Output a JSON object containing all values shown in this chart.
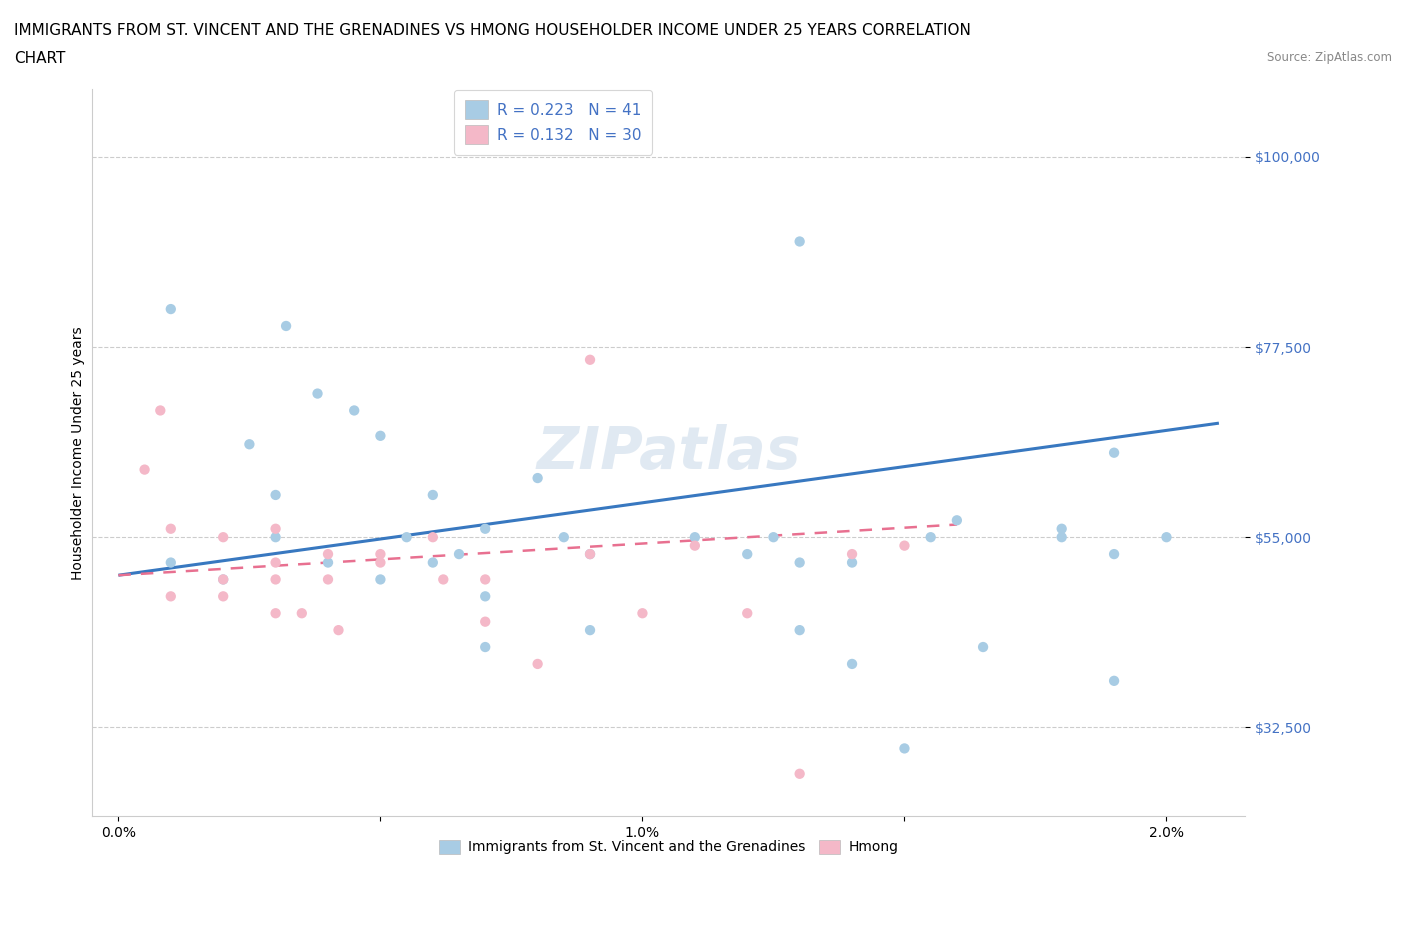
{
  "title_line1": "IMMIGRANTS FROM ST. VINCENT AND THE GRENADINES VS HMONG HOUSEHOLDER INCOME UNDER 25 YEARS CORRELATION",
  "title_line2": "CHART",
  "source": "Source: ZipAtlas.com",
  "ylabel": "Householder Income Under 25 years",
  "legend_label1": "Immigrants from St. Vincent and the Grenadines",
  "legend_label2": "Hmong",
  "R1": 0.223,
  "N1": 41,
  "R2": 0.132,
  "N2": 30,
  "color1": "#a8cce4",
  "color2": "#f4b8c8",
  "line1_color": "#3878c0",
  "line2_color": "#e87090",
  "background_color": "#ffffff",
  "grid_color": "#cccccc",
  "yticks": [
    32500,
    55000,
    77500,
    100000
  ],
  "ytick_labels": [
    "$32,500",
    "$55,000",
    "$77,500",
    "$100,000"
  ],
  "xlim": [
    -0.0005,
    0.0215
  ],
  "ylim": [
    22000,
    108000
  ],
  "xtick_vals": [
    0.0,
    0.005,
    0.01,
    0.015,
    0.02
  ],
  "xtick_labels": [
    "0.0%",
    "",
    "1.0%",
    "",
    "2.0%"
  ],
  "title_fontsize": 11,
  "axis_label_fontsize": 10,
  "tick_fontsize": 10,
  "watermark": "ZIPatlas",
  "blue_x": [
    0.001,
    0.0032,
    0.001,
    0.002,
    0.003,
    0.0025,
    0.003,
    0.0038,
    0.004,
    0.0045,
    0.005,
    0.005,
    0.006,
    0.006,
    0.0055,
    0.007,
    0.007,
    0.007,
    0.0065,
    0.008,
    0.009,
    0.009,
    0.0085,
    0.011,
    0.012,
    0.0125,
    0.013,
    0.013,
    0.014,
    0.014,
    0.015,
    0.0155,
    0.0165,
    0.018,
    0.018,
    0.019,
    0.019,
    0.019,
    0.02,
    0.013,
    0.016
  ],
  "blue_y": [
    82000,
    80000,
    52000,
    50000,
    60000,
    66000,
    55000,
    72000,
    52000,
    70000,
    67000,
    50000,
    60000,
    52000,
    55000,
    56000,
    48000,
    42000,
    53000,
    62000,
    53000,
    44000,
    55000,
    55000,
    53000,
    55000,
    44000,
    52000,
    40000,
    52000,
    30000,
    55000,
    42000,
    56000,
    55000,
    53000,
    38000,
    65000,
    55000,
    90000,
    57000
  ],
  "pink_x": [
    0.0005,
    0.0008,
    0.001,
    0.001,
    0.002,
    0.002,
    0.002,
    0.003,
    0.003,
    0.003,
    0.003,
    0.0035,
    0.004,
    0.004,
    0.0042,
    0.005,
    0.005,
    0.006,
    0.007,
    0.007,
    0.008,
    0.009,
    0.009,
    0.01,
    0.011,
    0.012,
    0.013,
    0.014,
    0.015,
    0.0062
  ],
  "pink_y": [
    63000,
    70000,
    56000,
    48000,
    55000,
    50000,
    48000,
    56000,
    52000,
    50000,
    46000,
    46000,
    53000,
    50000,
    44000,
    53000,
    52000,
    55000,
    50000,
    45000,
    40000,
    76000,
    53000,
    46000,
    54000,
    46000,
    27000,
    53000,
    54000,
    50000
  ],
  "blue_line_x0": 0.0,
  "blue_line_y0": 50500,
  "blue_line_x1": 0.021,
  "blue_line_y1": 68500,
  "pink_line_x0": 0.0,
  "pink_line_y0": 50500,
  "pink_line_x1": 0.016,
  "pink_line_y1": 56500
}
